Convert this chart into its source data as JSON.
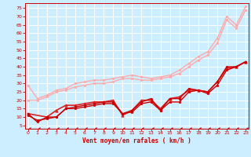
{
  "xlabel": "Vent moyen/en rafales ( km/h )",
  "bg_color": "#cceeff",
  "grid_color": "#ffffff",
  "text_color": "#cc0000",
  "x_ticks": [
    0,
    1,
    2,
    3,
    4,
    5,
    6,
    7,
    8,
    9,
    10,
    11,
    12,
    13,
    14,
    15,
    16,
    17,
    18,
    19,
    20,
    21,
    22,
    23
  ],
  "y_ticks": [
    5,
    10,
    15,
    20,
    25,
    30,
    35,
    40,
    45,
    50,
    55,
    60,
    65,
    70,
    75
  ],
  "ylim": [
    3,
    78
  ],
  "xlim": [
    -0.3,
    23.3
  ],
  "lines": [
    {
      "x": [
        0,
        1,
        2,
        3,
        4,
        5,
        6,
        7,
        8,
        9,
        10,
        11,
        12,
        13,
        14,
        15,
        16,
        17,
        18,
        19,
        20,
        21,
        22,
        23
      ],
      "y": [
        29,
        21,
        23,
        26,
        27,
        30,
        31,
        32,
        32,
        33,
        34,
        35,
        34,
        33,
        34,
        35,
        38,
        42,
        46,
        49,
        57,
        70,
        65,
        76
      ],
      "color": "#ffaaaa",
      "lw": 1.0,
      "marker": "D",
      "ms": 1.5
    },
    {
      "x": [
        0,
        1,
        2,
        3,
        4,
        5,
        6,
        7,
        8,
        9,
        10,
        11,
        12,
        13,
        14,
        15,
        16,
        17,
        18,
        19,
        20,
        21,
        22,
        23
      ],
      "y": [
        20,
        20,
        22,
        25,
        26,
        28,
        29,
        30,
        30,
        31,
        33,
        33,
        32,
        32,
        33,
        34,
        36,
        40,
        44,
        47,
        54,
        68,
        63,
        74
      ],
      "color": "#ffaaaa",
      "lw": 1.0,
      "marker": "s",
      "ms": 1.5
    },
    {
      "x": [
        0,
        2,
        3,
        4,
        5,
        6,
        7,
        8,
        9,
        10,
        11,
        12,
        13,
        14,
        15,
        16,
        17,
        18,
        19,
        20,
        21,
        22,
        23
      ],
      "y": [
        12,
        10,
        14,
        17,
        17,
        18,
        19,
        19,
        20,
        11,
        14,
        20,
        20,
        15,
        21,
        22,
        26,
        26,
        25,
        31,
        39,
        40,
        43
      ],
      "color": "#dd2222",
      "lw": 1.2,
      "marker": "^",
      "ms": 2.5
    },
    {
      "x": [
        0,
        1,
        2,
        3,
        4,
        5,
        6,
        7,
        8,
        9,
        10,
        11,
        12,
        13,
        14,
        15,
        16,
        17,
        18,
        19,
        20,
        21,
        22,
        23
      ],
      "y": [
        12,
        7,
        10,
        10,
        15,
        16,
        17,
        18,
        19,
        19,
        12,
        14,
        19,
        21,
        14,
        21,
        21,
        27,
        26,
        25,
        31,
        40,
        40,
        43
      ],
      "color": "#cc0000",
      "lw": 1.0,
      "marker": "D",
      "ms": 1.5
    },
    {
      "x": [
        0,
        1,
        2,
        3,
        4,
        5,
        6,
        7,
        8,
        9,
        10,
        11,
        12,
        13,
        14,
        15,
        16,
        17,
        18,
        19,
        20,
        21,
        22,
        23
      ],
      "y": [
        11,
        8,
        9,
        10,
        15,
        15,
        16,
        17,
        18,
        18,
        12,
        13,
        18,
        19,
        14,
        19,
        19,
        25,
        26,
        24,
        29,
        38,
        40,
        43
      ],
      "color": "#cc0000",
      "lw": 1.0,
      "marker": "s",
      "ms": 1.5
    },
    {
      "x": [
        0,
        1,
        2,
        3,
        4,
        5,
        6,
        7,
        8,
        9,
        10,
        11,
        12,
        13,
        14,
        15,
        16,
        17,
        18,
        19,
        20,
        21,
        22,
        23
      ],
      "y": [
        3,
        3,
        3,
        3,
        3,
        3,
        3,
        3,
        3,
        3,
        3,
        3,
        3,
        3,
        3,
        3,
        3,
        3,
        3,
        3,
        3,
        3,
        3,
        3
      ],
      "color": "#cc0000",
      "lw": 0.8,
      "marker": 4,
      "ms": 2.5
    }
  ]
}
